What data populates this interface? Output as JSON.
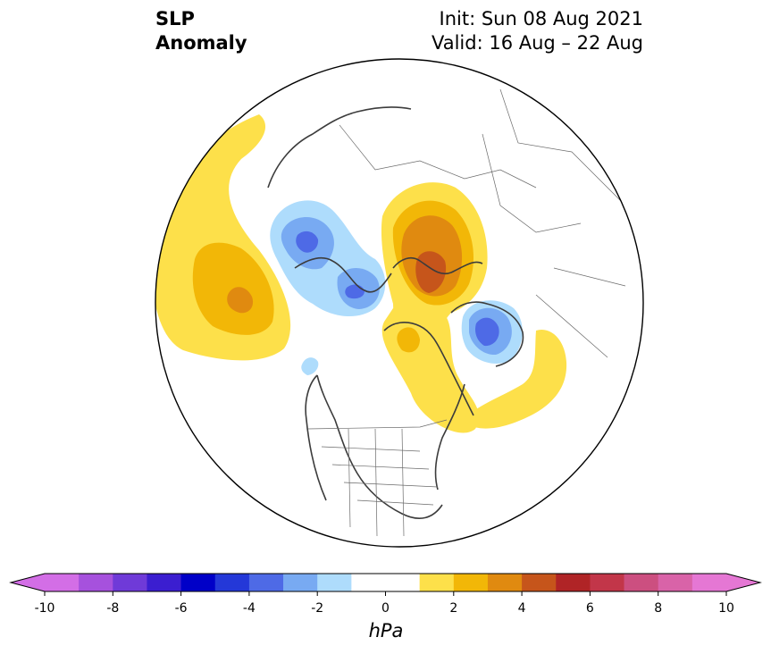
{
  "title": {
    "variable_line1": "SLP",
    "variable_line2": "Anomaly",
    "init": "Init: Sun 08 Aug 2021",
    "valid": "Valid: 16 Aug – 22 Aug"
  },
  "colorbar": {
    "unit": "hPa",
    "ticks": [
      "-10",
      "-8",
      "-6",
      "-4",
      "-2",
      "0",
      "2",
      "4",
      "6",
      "8",
      "10"
    ],
    "colors": [
      "#d36ee6",
      "#a651dd",
      "#6f3ad8",
      "#3b1ed0",
      "#0000c8",
      "#2438d8",
      "#4e6ae6",
      "#78aaf2",
      "#aedcfc",
      "#ffffff",
      "#ffffff",
      "#fde04a",
      "#f2b707",
      "#e08a10",
      "#c6551b",
      "#b02426",
      "#c23649",
      "#cc4f80",
      "#d963a8",
      "#e577d4"
    ],
    "extend_low": "#d36ee6",
    "extend_high": "#e577d4"
  },
  "map": {
    "projection": "north-polar-stereographic",
    "anomalies": [
      {
        "name": "north-pacific-high",
        "sign": "positive",
        "peak_level": 4
      },
      {
        "name": "siberia-arctic-high",
        "sign": "positive",
        "peak_level": 5
      },
      {
        "name": "hudson-bay-ridge",
        "sign": "positive",
        "peak_level": 1
      },
      {
        "name": "north-atlantic-ridge",
        "sign": "positive",
        "peak_level": 1
      },
      {
        "name": "europe-low",
        "sign": "negative",
        "peak_level": -4
      },
      {
        "name": "barents-low",
        "sign": "negative",
        "peak_level": -3
      },
      {
        "name": "greenland-low",
        "sign": "negative",
        "peak_level": -4
      },
      {
        "name": "west-coast-low",
        "sign": "negative",
        "peak_level": -1
      }
    ]
  }
}
